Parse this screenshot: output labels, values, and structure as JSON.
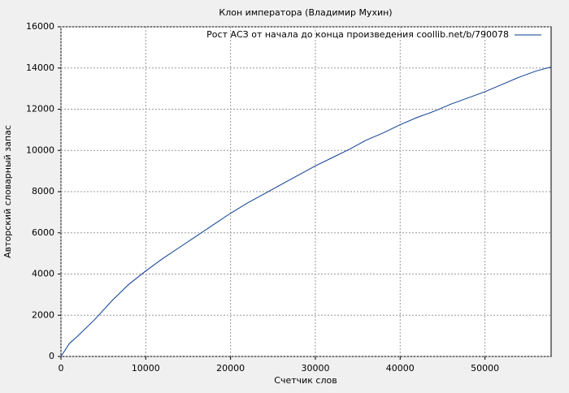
{
  "chart_data": {
    "type": "line",
    "title": "Клон императора (Владимир Мухин)",
    "x_label": "Счетчик слов",
    "y_label": "Авторский словарный запас",
    "x": [
      0,
      1000,
      2000,
      4000,
      6000,
      8000,
      10000,
      12000,
      14000,
      16000,
      18000,
      20000,
      22000,
      24000,
      26000,
      28000,
      30000,
      32000,
      34000,
      36000,
      38000,
      40000,
      42000,
      44000,
      46000,
      48000,
      50000,
      52000,
      54000,
      56000,
      57800
    ],
    "series": [
      {
        "name": "Рост АСЗ от начала до конца произведения coollib.net/b/790078",
        "color": "#0a3d91",
        "values": [
          0,
          630,
          1000,
          1800,
          2700,
          3500,
          4150,
          4750,
          5300,
          5850,
          6400,
          6950,
          7450,
          7900,
          8350,
          8800,
          9250,
          9650,
          10050,
          10500,
          10850,
          11250,
          11600,
          11900,
          12250,
          12550,
          12850,
          13200,
          13550,
          13850,
          14050
        ]
      }
    ],
    "xlim": [
      0,
      57800
    ],
    "ylim": [
      0,
      16000
    ],
    "xticks": [
      0,
      10000,
      20000,
      30000,
      40000,
      50000
    ],
    "yticks": [
      0,
      2000,
      4000,
      6000,
      8000,
      10000,
      12000,
      14000,
      16000
    ],
    "grid": true,
    "legend": "upper-right"
  }
}
